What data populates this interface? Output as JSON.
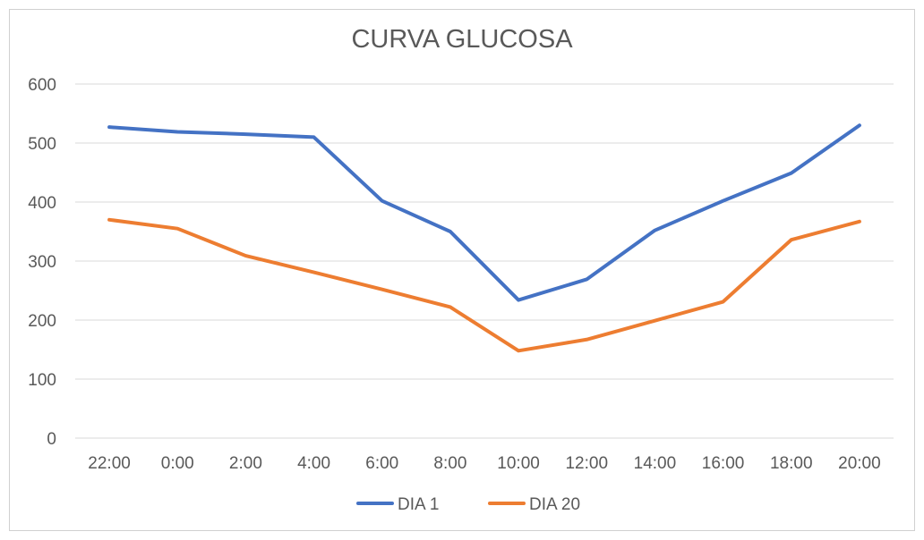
{
  "chart_data": {
    "type": "line",
    "title": "CURVA GLUCOSA",
    "xlabel": "",
    "ylabel": "",
    "categories": [
      "22:00",
      "0:00",
      "2:00",
      "4:00",
      "6:00",
      "8:00",
      "10:00",
      "12:00",
      "14:00",
      "16:00",
      "18:00",
      "20:00"
    ],
    "yticks": [
      "0",
      "100",
      "200",
      "300",
      "400",
      "500",
      "600"
    ],
    "ylim": [
      0,
      600
    ],
    "grid": true,
    "legend_position": "bottom",
    "series": [
      {
        "name": "DIA 1",
        "color": "#4472C4",
        "values": [
          527,
          519,
          515,
          510,
          402,
          350,
          234,
          269,
          352,
          402,
          449,
          530
        ]
      },
      {
        "name": "DIA 20",
        "color": "#ED7D31",
        "values": [
          370,
          355,
          309,
          281,
          252,
          222,
          148,
          167,
          199,
          231,
          336,
          367
        ]
      }
    ]
  }
}
